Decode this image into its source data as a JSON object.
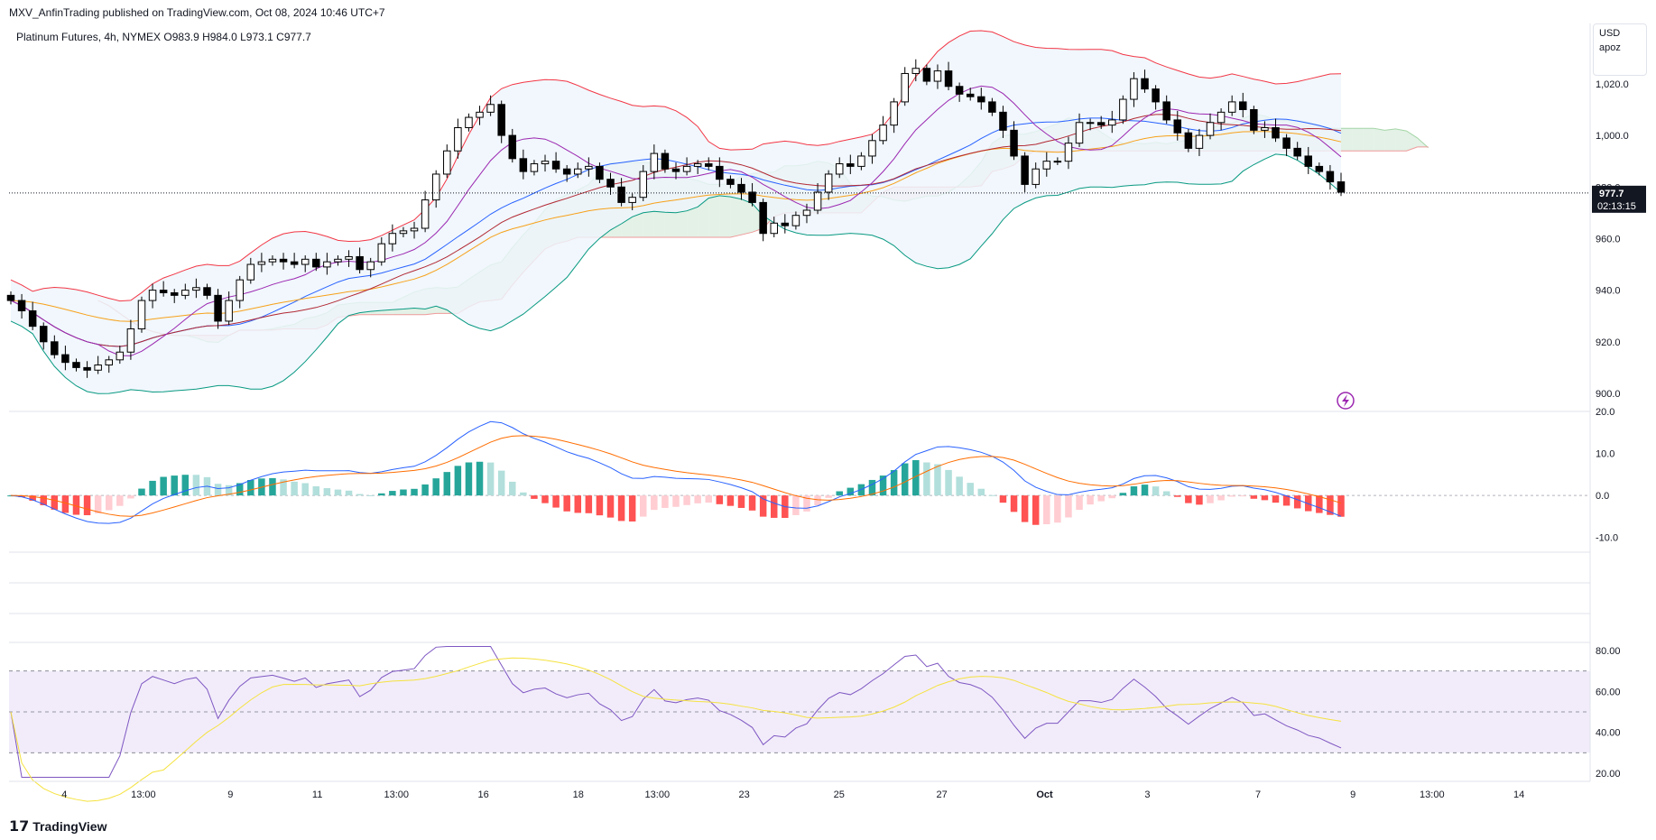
{
  "header": {
    "published": "MXV_AnfinTrading published on TradingView.com, Oct 08, 2024 10:46 UTC+7",
    "symbol_line": "Platinum Futures, 4h, NYMEX  O983.9  H984.0  L973.1  C977.7"
  },
  "currency_box": {
    "currency": "USD",
    "label": "apoz"
  },
  "footer": {
    "brand": "TradingView",
    "logo_icon": "tradingview-logo-icon"
  },
  "chart_data": [
    {
      "type": "candlestick",
      "title": "Platinum Futures, 4h, NYMEX",
      "ohlc_last": {
        "open": 983.9,
        "high": 984.0,
        "low": 973.1,
        "close": 977.7
      },
      "price_tick_labels": [
        "1,020.0",
        "1,000.0",
        "980.0",
        "960.0",
        "940.0",
        "920.0",
        "900.0"
      ],
      "price_ticks": [
        1020,
        1000,
        980,
        960,
        940,
        920,
        900
      ],
      "ylim": [
        893,
        1042
      ],
      "last_price": {
        "value": 977.7,
        "label": "977.7",
        "countdown": "02:13:15",
        "color": "#131722"
      },
      "x_tick_labels": [
        "4",
        "13:00",
        "9",
        "11",
        "13:00",
        "16",
        "18",
        "13:00",
        "23",
        "25",
        "27",
        "Oct",
        "3",
        "7",
        "9",
        "13:00",
        "14"
      ],
      "closes": [
        936,
        932,
        926,
        920,
        915,
        912,
        910,
        909,
        911,
        913,
        916,
        925,
        936,
        940,
        939,
        938,
        940,
        941,
        938,
        928,
        936,
        944,
        950,
        951,
        952,
        951,
        950,
        952,
        949,
        951,
        952,
        953,
        948,
        951,
        958,
        962,
        963,
        964,
        975,
        985,
        994,
        1003,
        1007,
        1009,
        1012,
        1000,
        991,
        986,
        989,
        990,
        987,
        985,
        987,
        988,
        983,
        980,
        974,
        976,
        986,
        993,
        987,
        986,
        988,
        989,
        988,
        983,
        981,
        978,
        974,
        962,
        966,
        965,
        969,
        971,
        978,
        985,
        989,
        988,
        992,
        998,
        1004,
        1013,
        1024,
        1026,
        1021,
        1025,
        1019,
        1016,
        1015,
        1013,
        1009,
        1002,
        992,
        981,
        987,
        990,
        990,
        997,
        1005,
        1005,
        1004,
        1006,
        1014,
        1022,
        1018,
        1013,
        1006,
        1001,
        995,
        1000,
        1005,
        1009,
        1013,
        1010,
        1002,
        1003,
        999,
        995,
        992,
        988,
        986,
        982,
        978
      ],
      "indicators": [
        "Bollinger Bands",
        "Ichimoku Cloud",
        "Moving Averages"
      ],
      "colors": {
        "up_candle": "#ffffff",
        "down_candle": "#000000",
        "bb_upper": "#f23645",
        "bb_lower": "#089981",
        "bb_basis": "#2962ff",
        "bb_fill": "#eef5fc",
        "cloud_bull": "#e3f1e6",
        "cloud_bear": "#fbe3e3",
        "ma_orange": "#f7a11a",
        "ma_red": "#b22833",
        "ma_purple": "#9c27b0"
      }
    },
    {
      "type": "macd",
      "tick_labels": [
        "20.0",
        "10.0",
        "0.0",
        "-10.0"
      ],
      "ticks": [
        20,
        10,
        0,
        -10
      ],
      "ylim": [
        -13.5,
        20
      ],
      "colors": {
        "macd": "#2962ff",
        "signal": "#ff6d00",
        "hist_pos_strong": "#26a69a",
        "hist_pos_weak": "#b2dfdb",
        "hist_neg_strong": "#ff5252",
        "hist_neg_weak": "#ffcdd2"
      }
    },
    {
      "type": "rsi",
      "tick_labels": [
        "80.00",
        "60.00",
        "40.00",
        "20.00"
      ],
      "ticks": [
        80,
        60,
        40,
        20
      ],
      "ylim": [
        16,
        84
      ],
      "band": [
        30,
        70
      ],
      "midline": 50,
      "colors": {
        "rsi": "#7e57c2",
        "ma": "#f5e23f",
        "band_fill": "#f2ecfa"
      }
    }
  ]
}
